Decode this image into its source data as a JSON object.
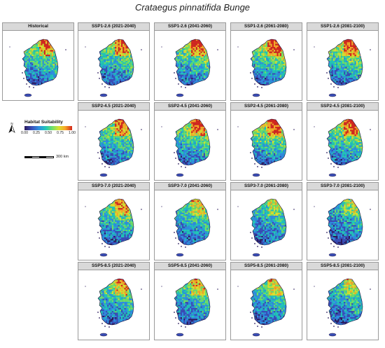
{
  "title": "Crataegus pinnatifida Bunge",
  "panels": [
    {
      "id": "historical",
      "label": "Historical"
    },
    {
      "id": "ssp126-2021",
      "label": "SSP1-2.6 (2021-2040)"
    },
    {
      "id": "ssp126-2041",
      "label": "SSP1-2.6 (2041-2060)"
    },
    {
      "id": "ssp126-2061",
      "label": "SSP1-2.6 (2061-2080)"
    },
    {
      "id": "ssp126-2081",
      "label": "SSP1-2.6 (2081-2100)"
    },
    {
      "id": "ssp245-2021",
      "label": "SSP2-4.5 (2021-2040)"
    },
    {
      "id": "ssp245-2041",
      "label": "SSP2-4.5 (2041-2060)"
    },
    {
      "id": "ssp245-2061",
      "label": "SSP2-4.5 (2061-2080)"
    },
    {
      "id": "ssp245-2081",
      "label": "SSP2-4.5 (2081-2100)"
    },
    {
      "id": "ssp370-2021",
      "label": "SSP3-7.0 (2021-2040)"
    },
    {
      "id": "ssp370-2041",
      "label": "SSP3-7.0 (2041-2060)"
    },
    {
      "id": "ssp370-2061",
      "label": "SSP3-7.0 (2061-2080)"
    },
    {
      "id": "ssp370-2081",
      "label": "SSP3-7.0 (2081-2100)"
    },
    {
      "id": "ssp585-2021",
      "label": "SSP5-8.5 (2021-2040)"
    },
    {
      "id": "ssp585-2041",
      "label": "SSP5-8.5 (2041-2060)"
    },
    {
      "id": "ssp585-2061",
      "label": "SSP5-8.5 (2061-2080)"
    },
    {
      "id": "ssp585-2081",
      "label": "SSP5-8.5 (2081-2100)"
    }
  ],
  "legend": {
    "title": "Habitat Suitability",
    "ticks": [
      "0.00",
      "0.25",
      "0.50",
      "0.75",
      "1.00"
    ],
    "colors": [
      "#2b1a5c",
      "#3a4fb8",
      "#2f8fe0",
      "#22c7b8",
      "#6ee06a",
      "#d8e030",
      "#f7a928",
      "#d4281e"
    ]
  },
  "north_arrow": {
    "label": "N"
  },
  "scale_bar": {
    "label": "300 km"
  }
}
